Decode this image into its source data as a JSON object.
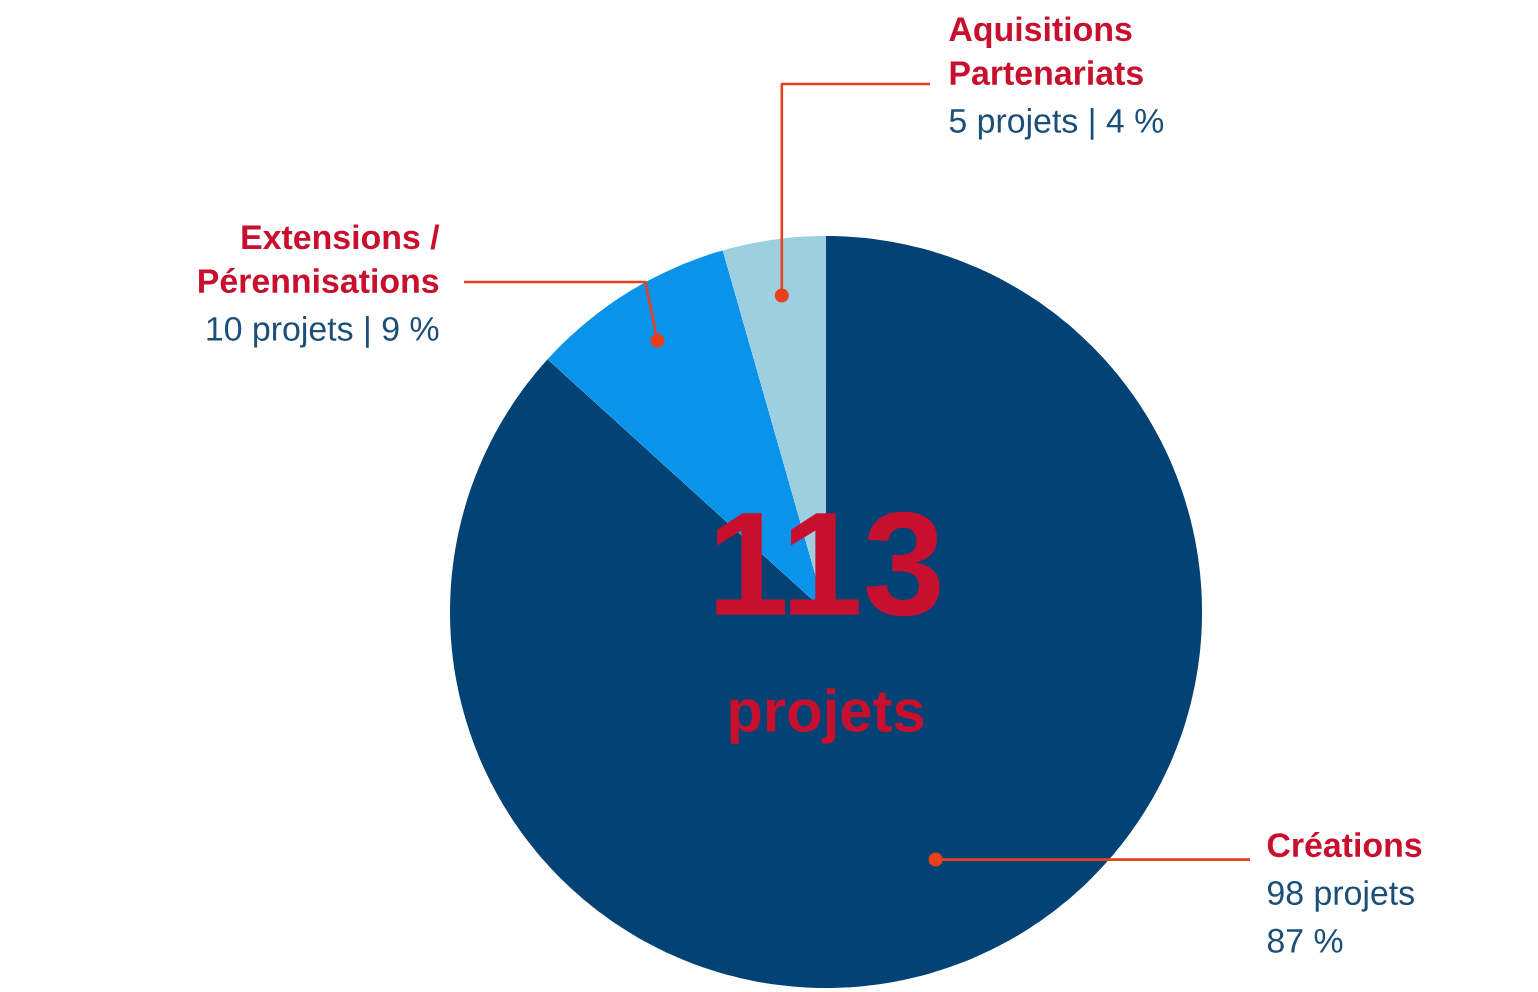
{
  "chart_data": {
    "type": "pie",
    "categories": [
      "Créations",
      "Extensions / Pérennisations",
      "Aquisitions Partenariats"
    ],
    "values": [
      98,
      10,
      5
    ],
    "value_labels": [
      "98 projets 87 %",
      "10 projets | 9 %",
      "5 projets | 4 %"
    ],
    "colors": [
      "#024274",
      "#0a93ea",
      "#9ecfe0"
    ],
    "annotations": [
      "113",
      "projets"
    ]
  }
}
